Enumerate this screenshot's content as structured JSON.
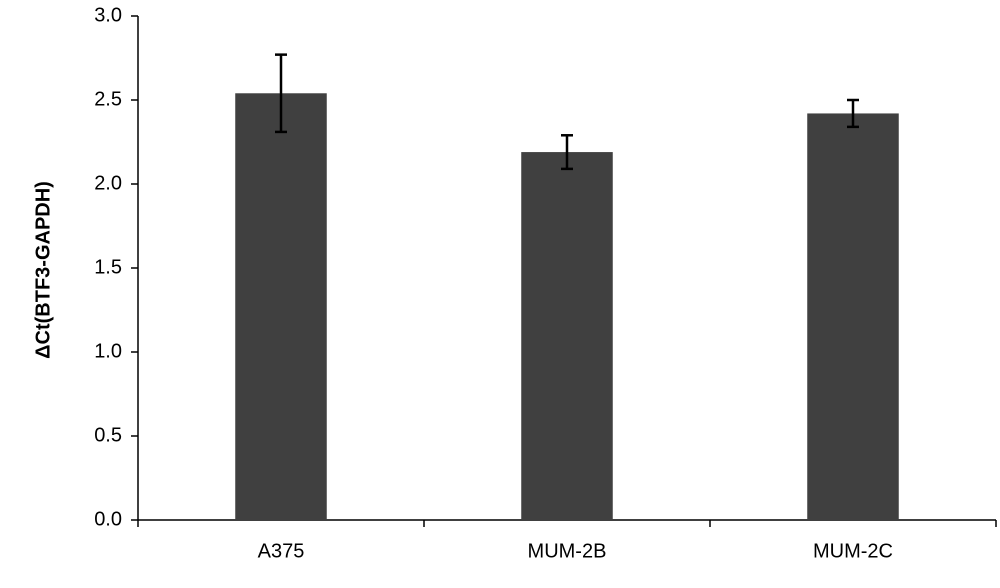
{
  "chart_data": {
    "type": "bar",
    "y_label": "ΔCt(BTF3-GAPDH)",
    "categories": [
      "A375",
      "MUM-2B",
      "MUM-2C"
    ],
    "values": [
      2.54,
      2.19,
      2.42
    ],
    "errors": [
      0.23,
      0.1,
      0.08
    ],
    "color": "#404040",
    "ylim": [
      0,
      3
    ],
    "yticks": [
      {
        "value": 0,
        "label": "0.0"
      },
      0.5,
      {
        "value": 1,
        "label": "1.0"
      },
      1.5,
      {
        "value": 2,
        "label": "2.0"
      },
      2.5,
      {
        "value": 3,
        "label": "3.0"
      }
    ],
    "grid": false
  }
}
